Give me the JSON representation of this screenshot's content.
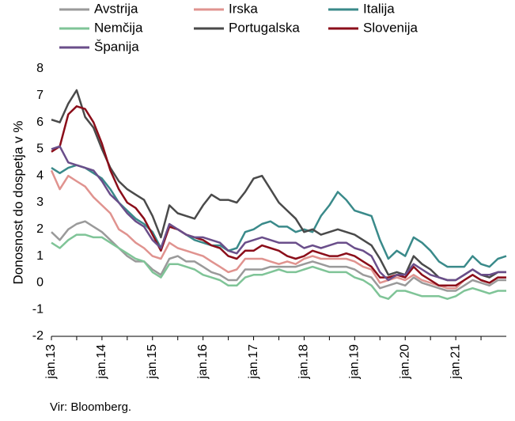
{
  "chart_data": {
    "type": "line",
    "ylabel": "Donosnost do dospetja v %",
    "ylim": [
      -2,
      8
    ],
    "yticks": [
      -2,
      -1,
      0,
      1,
      2,
      3,
      4,
      5,
      6,
      7,
      8
    ],
    "xlim": [
      "jan.13",
      "dec.21"
    ],
    "xticks": [
      "jan.13",
      "jan.14",
      "jan.15",
      "jan.16",
      "jan.17",
      "jan.18",
      "jan.19",
      "jan.20",
      "jan.21"
    ],
    "grid": false,
    "legend_position": "top",
    "x": [
      "jan.13",
      "mar.13",
      "maj.13",
      "jul.13",
      "sep.13",
      "nov.13",
      "jan.14",
      "mar.14",
      "maj.14",
      "jul.14",
      "sep.14",
      "nov.14",
      "jan.15",
      "mar.15",
      "maj.15",
      "jul.15",
      "sep.15",
      "nov.15",
      "jan.16",
      "mar.16",
      "maj.16",
      "jul.16",
      "sep.16",
      "nov.16",
      "jan.17",
      "mar.17",
      "maj.17",
      "jul.17",
      "sep.17",
      "nov.17",
      "jan.18",
      "mar.18",
      "maj.18",
      "jul.18",
      "sep.18",
      "nov.18",
      "jan.19",
      "mar.19",
      "maj.19",
      "jul.19",
      "sep.19",
      "nov.19",
      "jan.20",
      "mar.20",
      "maj.20",
      "jul.20",
      "sep.20",
      "nov.20",
      "jan.21",
      "mar.21",
      "maj.21",
      "jul.21",
      "sep.21",
      "nov.21",
      "dec.21"
    ],
    "series": [
      {
        "name": "Avstrija",
        "color": "#9a9a9a",
        "values": [
          1.9,
          1.6,
          2.0,
          2.2,
          2.3,
          2.1,
          1.9,
          1.6,
          1.3,
          1.0,
          0.8,
          0.8,
          0.5,
          0.3,
          0.9,
          1.0,
          0.8,
          0.8,
          0.6,
          0.4,
          0.3,
          0.1,
          0.1,
          0.5,
          0.5,
          0.5,
          0.6,
          0.6,
          0.6,
          0.6,
          0.7,
          0.8,
          0.7,
          0.6,
          0.6,
          0.6,
          0.5,
          0.3,
          0.2,
          -0.2,
          -0.1,
          0.0,
          -0.1,
          0.2,
          0.0,
          -0.1,
          -0.2,
          -0.3,
          -0.3,
          -0.1,
          0.1,
          0.0,
          -0.1,
          0.1,
          0.1
        ]
      },
      {
        "name": "Irska",
        "color": "#e0938f",
        "values": [
          4.2,
          3.5,
          4.0,
          3.8,
          3.6,
          3.2,
          2.9,
          2.6,
          2.0,
          1.8,
          1.5,
          1.3,
          1.0,
          0.9,
          1.5,
          1.3,
          1.2,
          1.1,
          1.0,
          0.8,
          0.6,
          0.4,
          0.5,
          0.9,
          0.9,
          0.9,
          0.8,
          0.7,
          0.8,
          0.7,
          0.9,
          1.0,
          0.9,
          0.9,
          0.9,
          0.9,
          0.8,
          0.6,
          0.5,
          0.0,
          0.1,
          0.2,
          0.1,
          0.3,
          0.1,
          0.0,
          -0.1,
          -0.2,
          -0.2,
          0.1,
          0.3,
          0.1,
          0.0,
          0.2,
          0.2
        ]
      },
      {
        "name": "Italija",
        "color": "#3a8a8a",
        "values": [
          4.3,
          4.1,
          4.3,
          4.4,
          4.3,
          4.1,
          3.9,
          3.5,
          3.0,
          2.7,
          2.4,
          2.2,
          1.9,
          1.3,
          2.1,
          2.0,
          1.8,
          1.6,
          1.5,
          1.4,
          1.4,
          1.2,
          1.3,
          1.9,
          2.0,
          2.2,
          2.3,
          2.1,
          2.1,
          1.9,
          2.0,
          1.9,
          2.5,
          2.9,
          3.4,
          3.1,
          2.7,
          2.6,
          2.5,
          1.6,
          0.9,
          1.2,
          1.0,
          1.7,
          1.5,
          1.2,
          0.8,
          0.6,
          0.6,
          0.6,
          1.0,
          0.7,
          0.6,
          0.9,
          1.0
        ]
      },
      {
        "name": "Nemčija",
        "color": "#7fc497",
        "values": [
          1.5,
          1.3,
          1.6,
          1.8,
          1.8,
          1.7,
          1.7,
          1.5,
          1.3,
          1.1,
          0.9,
          0.8,
          0.4,
          0.2,
          0.7,
          0.7,
          0.6,
          0.5,
          0.3,
          0.2,
          0.1,
          -0.1,
          -0.1,
          0.2,
          0.3,
          0.3,
          0.4,
          0.5,
          0.4,
          0.4,
          0.5,
          0.6,
          0.5,
          0.4,
          0.4,
          0.4,
          0.2,
          0.1,
          -0.1,
          -0.5,
          -0.6,
          -0.3,
          -0.3,
          -0.4,
          -0.5,
          -0.5,
          -0.5,
          -0.6,
          -0.5,
          -0.3,
          -0.2,
          -0.3,
          -0.4,
          -0.3,
          -0.3
        ]
      },
      {
        "name": "Portugalska",
        "color": "#4a4a4a",
        "values": [
          6.1,
          6.0,
          6.7,
          7.2,
          6.2,
          5.8,
          5.0,
          4.3,
          3.8,
          3.5,
          3.3,
          3.1,
          2.5,
          1.7,
          2.9,
          2.6,
          2.5,
          2.4,
          2.9,
          3.3,
          3.1,
          3.1,
          3.0,
          3.4,
          3.9,
          4.0,
          3.5,
          3.0,
          2.7,
          2.4,
          1.9,
          2.0,
          1.8,
          1.9,
          2.0,
          1.9,
          1.8,
          1.6,
          1.4,
          0.9,
          0.3,
          0.4,
          0.3,
          1.0,
          0.7,
          0.5,
          0.2,
          0.1,
          0.1,
          0.3,
          0.5,
          0.3,
          0.2,
          0.4,
          0.4
        ]
      },
      {
        "name": "Slovenija",
        "color": "#8b0e1a",
        "values": [
          4.9,
          5.1,
          6.3,
          6.6,
          6.5,
          6.0,
          5.2,
          4.2,
          3.5,
          3.0,
          2.8,
          2.4,
          1.8,
          1.2,
          2.1,
          2.0,
          1.8,
          1.7,
          1.6,
          1.4,
          1.3,
          1.0,
          0.9,
          1.2,
          1.2,
          1.4,
          1.3,
          1.2,
          1.0,
          0.9,
          1.0,
          1.2,
          1.1,
          1.0,
          1.0,
          1.1,
          1.0,
          0.8,
          0.6,
          0.2,
          0.2,
          0.3,
          0.2,
          0.6,
          0.3,
          0.1,
          -0.1,
          -0.1,
          -0.1,
          0.1,
          0.3,
          0.1,
          0.0,
          0.2,
          0.2
        ]
      },
      {
        "name": "Španija",
        "color": "#6a4e8a",
        "values": [
          5.0,
          5.1,
          4.5,
          4.4,
          4.3,
          4.2,
          3.8,
          3.3,
          3.0,
          2.6,
          2.3,
          2.1,
          1.6,
          1.3,
          2.2,
          2.0,
          1.8,
          1.7,
          1.7,
          1.6,
          1.5,
          1.2,
          1.1,
          1.5,
          1.6,
          1.7,
          1.6,
          1.5,
          1.5,
          1.5,
          1.3,
          1.4,
          1.3,
          1.4,
          1.5,
          1.5,
          1.3,
          1.2,
          1.0,
          0.4,
          0.1,
          0.3,
          0.3,
          0.7,
          0.5,
          0.3,
          0.2,
          0.1,
          0.1,
          0.3,
          0.5,
          0.3,
          0.3,
          0.4,
          0.4
        ]
      }
    ]
  },
  "source": "Vir: Bloomberg."
}
